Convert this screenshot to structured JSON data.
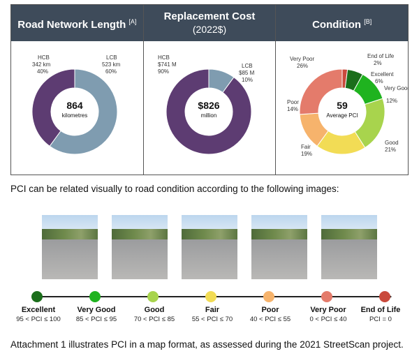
{
  "panels": [
    {
      "title": "Road Network Length",
      "title_note": "[A]",
      "subtitle": "",
      "center_value": "864",
      "center_unit": "kilometres",
      "slices": [
        {
          "name": "LCB",
          "label_value": "523 km",
          "pct": "60%",
          "share": 0.6,
          "color": "#7f9cb0"
        },
        {
          "name": "HCB",
          "label_value": "342 km",
          "pct": "40%",
          "share": 0.4,
          "color": "#5d3c72"
        }
      ]
    },
    {
      "title": "Replacement Cost",
      "title_note": "",
      "subtitle": "(2022$)",
      "center_value": "$826",
      "center_unit": "million",
      "slices": [
        {
          "name": "LCB",
          "label_value": "$85 M",
          "pct": "10%",
          "share": 0.1,
          "color": "#7f9cb0"
        },
        {
          "name": "HCB",
          "label_value": "$741 M",
          "pct": "90%",
          "share": 0.9,
          "color": "#5d3c72"
        }
      ]
    },
    {
      "title": "Condition",
      "title_note": "[B]",
      "subtitle": "",
      "center_value": "59",
      "center_unit": "Average PCI",
      "slices": [
        {
          "name": "End of Life",
          "pct": "2%",
          "share": 0.02,
          "color": "#c94a3c"
        },
        {
          "name": "Excellent",
          "pct": "6%",
          "share": 0.06,
          "color": "#1b6e1b"
        },
        {
          "name": "Very Good",
          "pct": "12%",
          "share": 0.12,
          "color": "#1fb31f"
        },
        {
          "name": "Good",
          "pct": "21%",
          "share": 0.21,
          "color": "#a8d44d"
        },
        {
          "name": "Fair",
          "pct": "19%",
          "share": 0.19,
          "color": "#f2dc55"
        },
        {
          "name": "Poor",
          "pct": "14%",
          "share": 0.14,
          "color": "#f6b36c"
        },
        {
          "name": "Very Poor",
          "pct": "26%",
          "share": 0.26,
          "color": "#e47b6b"
        }
      ]
    }
  ],
  "intro_text": "PCI can be related visually to road condition according to the following images:",
  "stages": [
    {
      "name": "Excellent",
      "range": "95 < PCI ≤ 100",
      "color": "#1b6e1b"
    },
    {
      "name": "Very Good",
      "range": "85 < PCI ≤ 95",
      "color": "#1fb31f"
    },
    {
      "name": "Good",
      "range": "70 < PCI ≤ 85",
      "color": "#a8d44d"
    },
    {
      "name": "Fair",
      "range": "55 < PCI ≤ 70",
      "color": "#f2dc55"
    },
    {
      "name": "Poor",
      "range": "40 < PCI ≤ 55",
      "color": "#f6b36c"
    },
    {
      "name": "Very Poor",
      "range": "0 < PCI ≤ 40",
      "color": "#e47b6b"
    },
    {
      "name": "End of Life",
      "range": "PCI = 0",
      "color": "#c94a3c"
    }
  ],
  "footer_text": "Attachment 1 illustrates PCI in a map format, as assessed during the 2021 StreetScan project."
}
